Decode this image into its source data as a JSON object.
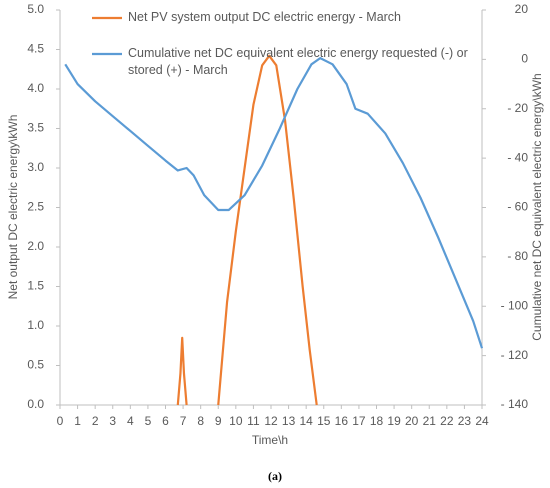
{
  "chart_data": {
    "type": "line",
    "xlabel": "Time\\h",
    "ylabel": "Net output DC electric energy\\kWh",
    "y2label": "Cumulative net DC equivalent electric energy\\kWh",
    "caption": "(a)",
    "legend": "upper left",
    "xlim": [
      0,
      24
    ],
    "xticks": [
      0,
      1,
      2,
      3,
      4,
      5,
      6,
      7,
      8,
      9,
      10,
      11,
      12,
      13,
      14,
      15,
      16,
      17,
      18,
      19,
      20,
      21,
      22,
      23,
      24
    ],
    "ylim": [
      0,
      5
    ],
    "yticks": [
      {
        "value": 0,
        "label": "0.0"
      },
      {
        "value": 0.5,
        "label": "0.5"
      },
      {
        "value": 1,
        "label": "1.0"
      },
      {
        "value": 1.5,
        "label": "1.5"
      },
      {
        "value": 2,
        "label": "2.0"
      },
      {
        "value": 2.5,
        "label": "2.5"
      },
      {
        "value": 3,
        "label": "3.0"
      },
      {
        "value": 3.5,
        "label": "3.5"
      },
      {
        "value": 4,
        "label": "4.0"
      },
      {
        "value": 4.5,
        "label": "4.5"
      },
      {
        "value": 5,
        "label": "5.0"
      }
    ],
    "y2lim": [
      -140,
      20
    ],
    "y2ticks": [
      {
        "value": -140,
        "label": "- 140"
      },
      {
        "value": -120,
        "label": "- 120"
      },
      {
        "value": -100,
        "label": "- 100"
      },
      {
        "value": -80,
        "label": "- 80"
      },
      {
        "value": -60,
        "label": "- 60"
      },
      {
        "value": -40,
        "label": "- 40"
      },
      {
        "value": -20,
        "label": "- 20"
      },
      0,
      20
    ],
    "series": [
      {
        "name": "Net PV system output DC electric energy - March",
        "color": "#ed7d31",
        "x": [
          6.7,
          6.85,
          6.95,
          7.05,
          7.2,
          null,
          9.0,
          9.5,
          10,
          10.5,
          11,
          11.5,
          11.9,
          12.3,
          12.8,
          13.3,
          13.8,
          14.2,
          14.6
        ],
        "values": [
          0,
          0.4,
          0.85,
          0.4,
          0,
          null,
          0,
          1.3,
          2.2,
          3.0,
          3.8,
          4.3,
          4.42,
          4.3,
          3.6,
          2.6,
          1.5,
          0.7,
          0
        ]
      },
      {
        "name": "Cumulative net DC equivalent electric energy requested (-) or stored (+) - March",
        "color": "#5b9bd5",
        "axis": "y2",
        "x": [
          0.3,
          1,
          2,
          3,
          4,
          5,
          6,
          6.7,
          7.2,
          7.6,
          8.2,
          9,
          9.6,
          10.5,
          11.5,
          12.5,
          13.5,
          14.3,
          14.8,
          15.5,
          16.3,
          16.8,
          17.5,
          18.5,
          19.5,
          20.5,
          21.5,
          22.5,
          23.5,
          24
        ],
        "values": [
          -2,
          -10,
          -17,
          -23,
          -29,
          -35,
          -41,
          -45,
          -44,
          -47,
          -55,
          -61,
          -61,
          -55,
          -43,
          -28,
          -12,
          -2,
          0.5,
          -2,
          -10,
          -20,
          -22,
          -30,
          -42,
          -56,
          -72,
          -89,
          -106,
          -117
        ]
      }
    ]
  }
}
